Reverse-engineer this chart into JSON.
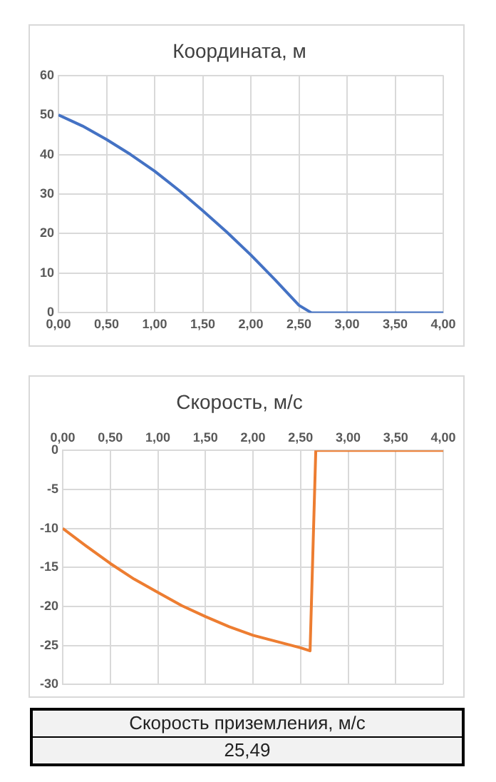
{
  "chart_data": [
    {
      "type": "line",
      "title": "Координата, м",
      "color": "#4472c4",
      "marker": "none",
      "grid": true,
      "x": [
        0,
        0.25,
        0.5,
        0.75,
        1,
        1.25,
        1.5,
        1.75,
        2,
        2.25,
        2.5,
        2.63,
        3,
        3.5,
        4
      ],
      "values": [
        50,
        47.2,
        43.8,
        40,
        35.8,
        31,
        25.8,
        20.4,
        14.6,
        8.4,
        1.9,
        0,
        0,
        0,
        0
      ],
      "xlim": [
        0,
        4
      ],
      "xticks": [
        {
          "value": 0,
          "label": "0,00"
        },
        {
          "value": 0.5,
          "label": "0,50"
        },
        {
          "value": 1,
          "label": "1,00"
        },
        {
          "value": 1.5,
          "label": "1,50"
        },
        {
          "value": 2,
          "label": "2,00"
        },
        {
          "value": 2.5,
          "label": "2,50"
        },
        {
          "value": 3,
          "label": "3,00"
        },
        {
          "value": 3.5,
          "label": "3,50"
        },
        {
          "value": 4,
          "label": "4,00"
        }
      ],
      "ylim": [
        0,
        60
      ],
      "yticks": [
        0,
        10,
        20,
        30,
        40,
        50,
        60
      ]
    },
    {
      "type": "line",
      "title": "Скорость, м/с",
      "color": "#ed7d31",
      "marker": "none",
      "grid": true,
      "x": [
        0,
        0.25,
        0.5,
        0.75,
        1,
        1.25,
        1.5,
        1.75,
        2,
        2.25,
        2.5,
        2.6,
        2.66,
        3,
        3.5,
        4
      ],
      "values": [
        -10,
        -12.3,
        -14.5,
        -16.5,
        -18.2,
        -19.9,
        -21.3,
        -22.6,
        -23.7,
        -24.5,
        -25.3,
        -25.7,
        0,
        0,
        0,
        0
      ],
      "xlim": [
        0,
        4
      ],
      "xticks": [
        {
          "value": 0,
          "label": "0,00"
        },
        {
          "value": 0.5,
          "label": "0,50"
        },
        {
          "value": 1,
          "label": "1,00"
        },
        {
          "value": 1.5,
          "label": "1,50"
        },
        {
          "value": 2,
          "label": "2,00"
        },
        {
          "value": 2.5,
          "label": "2,50"
        },
        {
          "value": 3,
          "label": "3,00"
        },
        {
          "value": 3.5,
          "label": "3,50"
        },
        {
          "value": 4,
          "label": "4,00"
        }
      ],
      "ylim": [
        -30,
        0
      ],
      "yticks": [
        -30,
        -25,
        -20,
        -15,
        -10,
        -5,
        0
      ]
    },
    {
      "type": "other",
      "title": "Скорость приземления, м/с",
      "annotations": [
        "25,49"
      ]
    }
  ]
}
